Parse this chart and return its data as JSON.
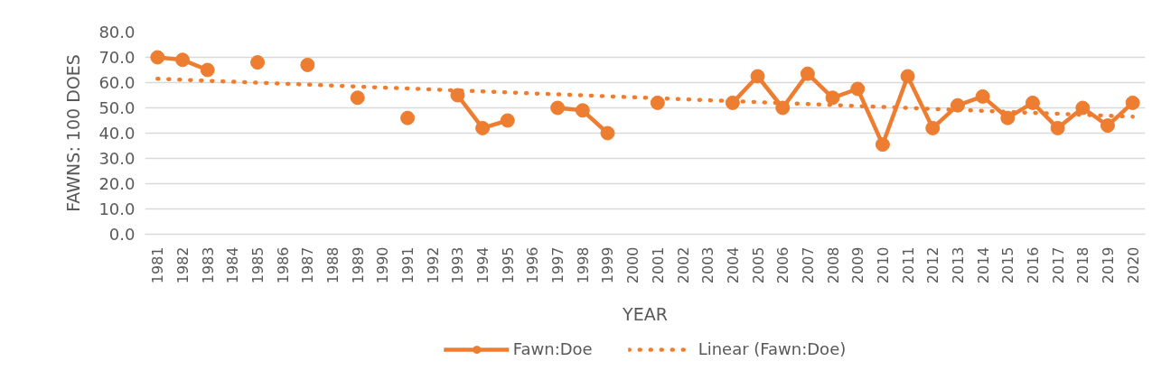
{
  "chart_data": {
    "type": "line",
    "xlabel": "YEAR",
    "ylabel": "FAWNS: 100 DOES",
    "x": [
      1981,
      1982,
      1983,
      1984,
      1985,
      1986,
      1987,
      1988,
      1989,
      1990,
      1991,
      1992,
      1993,
      1994,
      1995,
      1996,
      1997,
      1998,
      1999,
      2000,
      2001,
      2002,
      2003,
      2004,
      2005,
      2006,
      2007,
      2008,
      2009,
      2010,
      2011,
      2012,
      2013,
      2014,
      2015,
      2016,
      2017,
      2018,
      2019,
      2020
    ],
    "series": [
      {
        "name": "Fawn:Doe",
        "color": "#ed7d31",
        "values": [
          70,
          69,
          65,
          null,
          68,
          null,
          67,
          null,
          54,
          null,
          46,
          null,
          55,
          42,
          45,
          null,
          50,
          49,
          40,
          null,
          52,
          null,
          null,
          52,
          62.5,
          50,
          63.5,
          54,
          57.5,
          35.5,
          62.5,
          42,
          51,
          54.5,
          46,
          52,
          42,
          50,
          43,
          52
        ]
      },
      {
        "name": "Linear (Fawn:Doe)",
        "color": "#ed7d31",
        "x": [
          1981,
          2020
        ],
        "values": [
          61.5,
          46.5
        ],
        "marker": "none",
        "line_style": "dotted"
      }
    ],
    "xlim": [
      1980.5,
      2020.5
    ],
    "xticks": [
      1981,
      1982,
      1983,
      1984,
      1985,
      1986,
      1987,
      1988,
      1989,
      1990,
      1991,
      1992,
      1993,
      1994,
      1995,
      1996,
      1997,
      1998,
      1999,
      2000,
      2001,
      2002,
      2003,
      2004,
      2005,
      2006,
      2007,
      2008,
      2009,
      2010,
      2011,
      2012,
      2013,
      2014,
      2015,
      2016,
      2017,
      2018,
      2019,
      2020
    ],
    "ylim": [
      0,
      80
    ],
    "yticks": [
      {
        "value": 0,
        "label": "0.0"
      },
      {
        "value": 10,
        "label": "10.0"
      },
      {
        "value": 20,
        "label": "20.0"
      },
      {
        "value": 30,
        "label": "30.0"
      },
      {
        "value": 40,
        "label": "40.0"
      },
      {
        "value": 50,
        "label": "50.0"
      },
      {
        "value": 60,
        "label": "60.0"
      },
      {
        "value": 70,
        "label": "70.0"
      },
      {
        "value": 80,
        "label": "80.0"
      }
    ],
    "grid": "y",
    "legend": "bottom",
    "marker": "circle",
    "line_style": "solid"
  }
}
